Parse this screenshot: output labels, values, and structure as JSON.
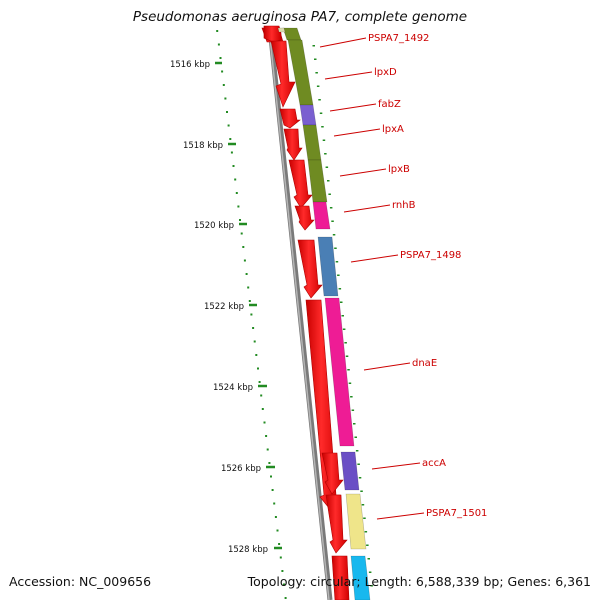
{
  "title": "Pseudomonas aeruginosa PA7, complete genome",
  "accession": "Accession: NC_009656",
  "topology": "Topology: circular; Length: 6,588,339 bp; Genes: 6,361",
  "scale": {
    "unit": "kbp",
    "labels": [
      "1516 kbp",
      "1518 kbp",
      "1520 kbp",
      "1522 kbp",
      "1524 kbp",
      "1526 kbp",
      "1528 kbp"
    ]
  },
  "genes": [
    {
      "name": "PSPA7_1492",
      "color": "#6f8b22"
    },
    {
      "name": "lpxD",
      "color": "#6f8b22"
    },
    {
      "name": "fabZ",
      "color": "#7a5fd0"
    },
    {
      "name": "lpxA",
      "color": "#6f8b22"
    },
    {
      "name": "lpxB",
      "color": "#6f8b22"
    },
    {
      "name": "rnhB",
      "color": "#ee1c95"
    },
    {
      "name": "PSPA7_1498",
      "color": "#4a7fb5"
    },
    {
      "name": "dnaE",
      "color": "#ee1c95"
    },
    {
      "name": "accA",
      "color": "#6a4fc5"
    },
    {
      "name": "PSPA7_1501",
      "color": "#efe58a"
    }
  ],
  "colors": {
    "cds": "#ff0000",
    "backbone": "#888888",
    "tick": "#228b22",
    "label": "#cc0000"
  }
}
